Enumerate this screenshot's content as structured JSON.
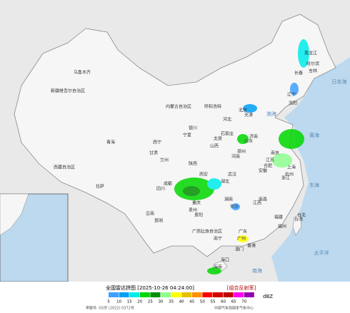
{
  "header": {
    "title": "全国雷达拼图 [2025-10-26 04:24:00]",
    "product": "[组合反射率]"
  },
  "legend": {
    "unit": "dBZ",
    "entries": [
      {
        "value": 5,
        "color": "#3fa0ff"
      },
      {
        "value": 10,
        "color": "#01a0f6"
      },
      {
        "value": 15,
        "color": "#00ecec"
      },
      {
        "value": 20,
        "color": "#00d800"
      },
      {
        "value": 25,
        "color": "#019000"
      },
      {
        "value": 30,
        "color": "#8fff8f"
      },
      {
        "value": 35,
        "color": "#ffff00"
      },
      {
        "value": 40,
        "color": "#e7c000"
      },
      {
        "value": 45,
        "color": "#ff9000"
      },
      {
        "value": 50,
        "color": "#ff0000"
      },
      {
        "value": 55,
        "color": "#d60000"
      },
      {
        "value": 60,
        "color": "#c00000"
      },
      {
        "value": 65,
        "color": "#ff00f0"
      },
      {
        "value": 70,
        "color": "#9600b4"
      }
    ]
  },
  "footer": {
    "approval": "审图号: GS京 (2022) 0372号",
    "source": "中国气象局国家气象中心"
  },
  "labels": [
    "新疆维吾尔自治区",
    "乌鲁木齐",
    "西藏自治区",
    "拉萨",
    "青海",
    "西宁",
    "甘肃",
    "兰州",
    "宁夏",
    "银川",
    "内蒙古自治区",
    "呼和浩特",
    "黑龙江",
    "哈尔滨",
    "吉林",
    "长春",
    "辽宁",
    "沈阳",
    "北京",
    "天津",
    "河北",
    "石家庄",
    "山西",
    "太原",
    "山东",
    "济南",
    "河南",
    "郑州",
    "陕西",
    "西安",
    "四川",
    "成都",
    "重庆",
    "湖北",
    "武汉",
    "湖南",
    "长沙",
    "安徽",
    "合肥",
    "江苏",
    "南京",
    "上海",
    "浙江",
    "杭州",
    "江西",
    "南昌",
    "福建",
    "福州",
    "台湾",
    "台北",
    "广东",
    "广州",
    "广西壮族自治区",
    "南宁",
    "贵州",
    "贵阳",
    "云南",
    "昆明",
    "海南",
    "海口",
    "香港",
    "澳门",
    "渤海",
    "黄海",
    "东海",
    "南海",
    "太平洋",
    "日本海"
  ]
}
